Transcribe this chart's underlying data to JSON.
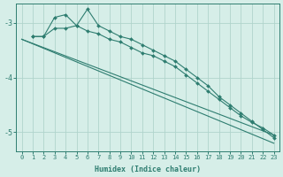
{
  "xlabel": "Humidex (Indice chaleur)",
  "ylabel": "",
  "bg_color": "#d6eee8",
  "line_color": "#2e7d70",
  "grid_color": "#b0d4cc",
  "xlim": [
    -0.5,
    23.5
  ],
  "ylim": [
    -5.35,
    -2.65
  ],
  "yticks": [
    -5,
    -4,
    -3
  ],
  "xticks": [
    0,
    1,
    2,
    3,
    4,
    5,
    6,
    7,
    8,
    9,
    10,
    11,
    12,
    13,
    14,
    15,
    16,
    17,
    18,
    19,
    20,
    21,
    22,
    23
  ],
  "series": [
    {
      "x": [
        1,
        2,
        3,
        4,
        5,
        6,
        7,
        8,
        9,
        10,
        11,
        12,
        13,
        14,
        15,
        16,
        17,
        18,
        19,
        20,
        21,
        22,
        23
      ],
      "y": [
        -3.25,
        -3.25,
        -2.9,
        -2.85,
        -3.05,
        -2.75,
        -3.05,
        -3.15,
        -3.25,
        -3.3,
        -3.4,
        -3.5,
        -3.6,
        -3.7,
        -3.85,
        -4.0,
        -4.15,
        -4.35,
        -4.5,
        -4.65,
        -4.8,
        -4.95,
        -5.1
      ],
      "marker": true
    },
    {
      "x": [
        1,
        2,
        3,
        4,
        5,
        6,
        7,
        8,
        9,
        10,
        11,
        12,
        13,
        14,
        15,
        16,
        17,
        18,
        19,
        20,
        21,
        22,
        23
      ],
      "y": [
        -3.25,
        -3.25,
        -3.1,
        -3.1,
        -3.05,
        -3.15,
        -3.2,
        -3.3,
        -3.35,
        -3.45,
        -3.55,
        -3.6,
        -3.7,
        -3.8,
        -3.95,
        -4.1,
        -4.25,
        -4.4,
        -4.55,
        -4.7,
        -4.82,
        -4.92,
        -5.05
      ],
      "marker": true
    },
    {
      "x": [
        0,
        23
      ],
      "y": [
        -3.3,
        -5.2
      ],
      "marker": false
    },
    {
      "x": [
        0,
        23
      ],
      "y": [
        -3.3,
        -5.05
      ],
      "marker": false
    }
  ]
}
